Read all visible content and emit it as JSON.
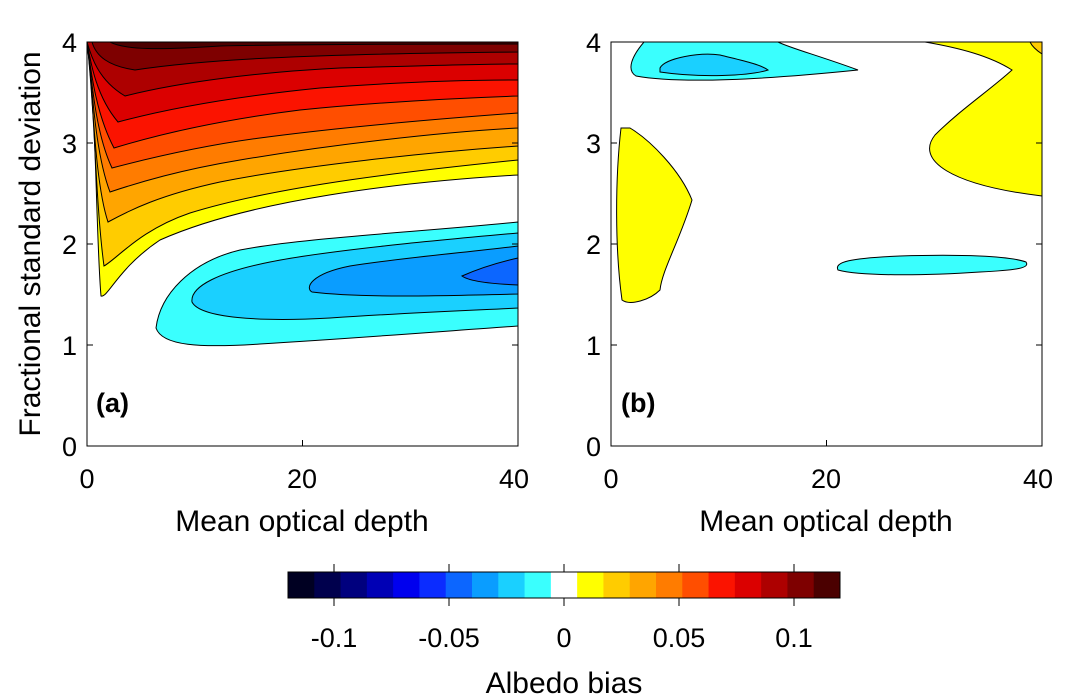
{
  "chart_data": [
    {
      "type": "heatmap",
      "panel_label": "(a)",
      "xlabel": "Mean optical depth",
      "ylabel": "Fractional standard deviation",
      "xlim": [
        0,
        40
      ],
      "ylim": [
        0,
        4
      ],
      "x_ticks": [
        "0",
        "20",
        "40"
      ],
      "y_ticks": [
        "0",
        "1",
        "2",
        "3",
        "4"
      ],
      "description_values": "Albedo bias contours: positive bias (yellow to dark red, up to ~0.12) for fractional standard deviation above ~2.3 and near tau~0-3; negative bias (cyan to blue, down to ~-0.04) in band between std 1.1 and 2.2 for tau > 7"
    },
    {
      "type": "heatmap",
      "panel_label": "(b)",
      "xlabel": "Mean optical depth",
      "ylabel": "",
      "xlim": [
        0,
        40
      ],
      "ylim": [
        0,
        4
      ],
      "x_ticks": [
        "0",
        "20",
        "40"
      ],
      "y_ticks": [
        "0",
        "1",
        "2",
        "3",
        "4"
      ],
      "description_values": "Small albedo bias patches: positive (~0.01-0.03) near tau 1-7 std 1.4-3.1 and tau 30-40 std 2.5-4; negative (~-0.01 to -0.02) near tau 3-23 std 3.5-4 and tau 21-38 std 1.6-1.8"
    }
  ],
  "colorbar": {
    "label": "Albedo bias",
    "range": [
      -0.12,
      0.12
    ],
    "tick_values": [
      -0.1,
      -0.05,
      0,
      0.05,
      0.1
    ],
    "tick_labels": [
      "-0.1",
      "-0.05",
      "0",
      "0.05",
      "0.1"
    ],
    "colors": [
      "#000022",
      "#00004d",
      "#00007e",
      "#0000b5",
      "#0000ee",
      "#0b2cff",
      "#0c66ff",
      "#0a9dff",
      "#1ad0ff",
      "#3afffe",
      "#ffffff",
      "#ffff00",
      "#ffcc00",
      "#ffa500",
      "#ff7c00",
      "#ff4e00",
      "#fb1300",
      "#db0000",
      "#ad0000",
      "#7e0000",
      "#4b0000"
    ]
  }
}
